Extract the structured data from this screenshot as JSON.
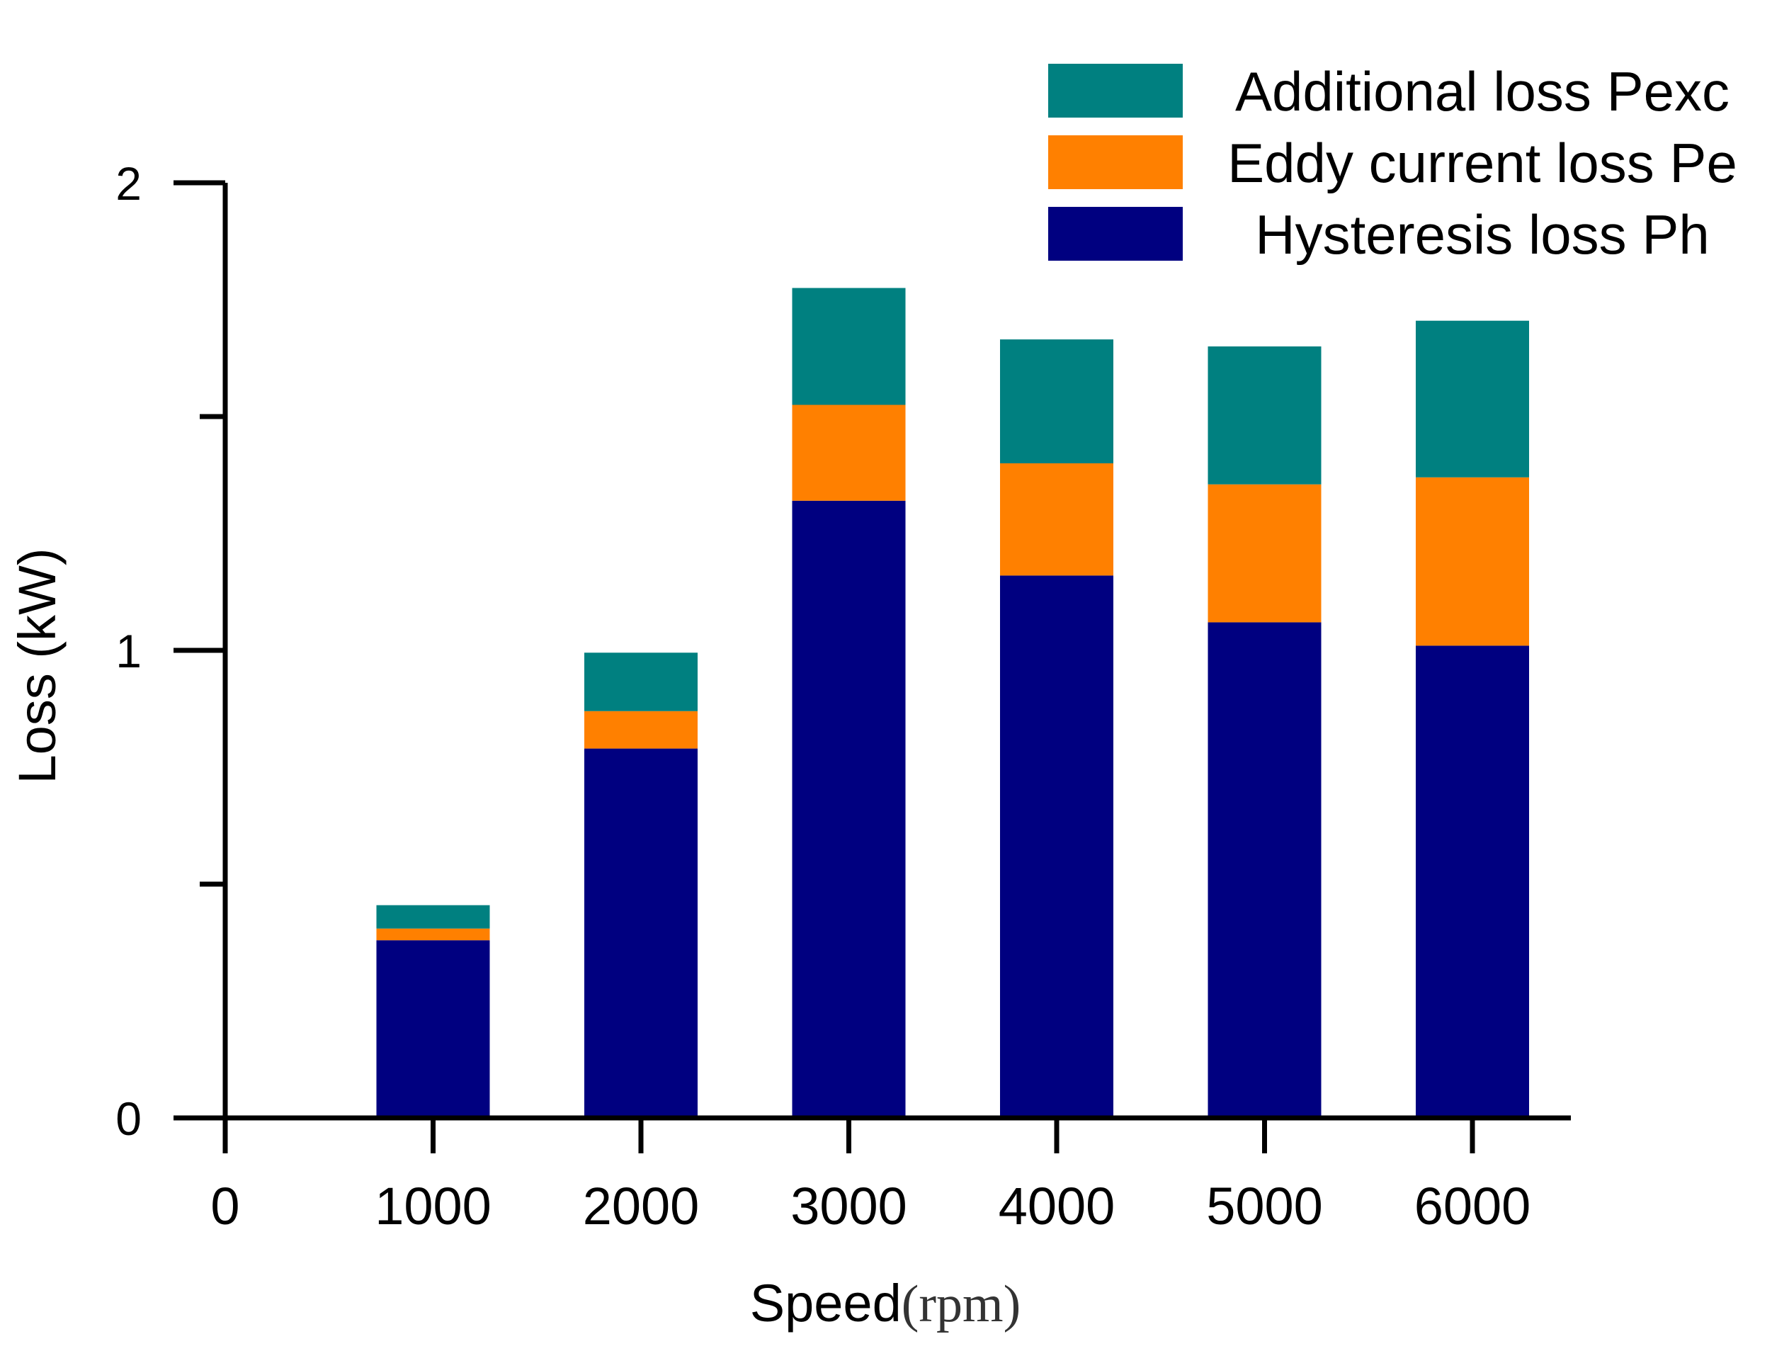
{
  "chart_data": {
    "type": "bar",
    "stacked": true,
    "title": "",
    "xlabel": "Speed",
    "xlabel_unit": "(rpm)",
    "ylabel": "Loss (kW)",
    "categories": [
      1000,
      2000,
      3000,
      4000,
      5000,
      6000
    ],
    "x_ticks": [
      0,
      1000,
      2000,
      3000,
      4000,
      5000,
      6000
    ],
    "x_tick_labels": [
      "0",
      "1000",
      "2000",
      "3000",
      "4000",
      "5000",
      "6000"
    ],
    "xlim": [
      0,
      6500
    ],
    "ylim": [
      0,
      2
    ],
    "y_major_ticks": [
      0,
      1,
      2
    ],
    "y_tick_labels": [
      "0",
      "1",
      "2"
    ],
    "y_minor_ticks": [
      0.5,
      1.5
    ],
    "grid": false,
    "legend_position": "top-right",
    "series": [
      {
        "name": "Hysteresis loss Ph",
        "color": "#000080",
        "values": [
          0.38,
          0.79,
          1.32,
          1.16,
          1.06,
          1.01
        ]
      },
      {
        "name": "Eddy current loss Pe",
        "color": "#FF8000",
        "values": [
          0.025,
          0.08,
          0.205,
          0.24,
          0.295,
          0.36
        ]
      },
      {
        "name": "Additional loss Pexc",
        "color": "#008080",
        "values": [
          0.05,
          0.125,
          0.25,
          0.265,
          0.295,
          0.335
        ]
      }
    ],
    "legend_order": [
      "Additional loss Pexc",
      "Eddy current loss Pe",
      "Hysteresis loss Ph"
    ]
  }
}
